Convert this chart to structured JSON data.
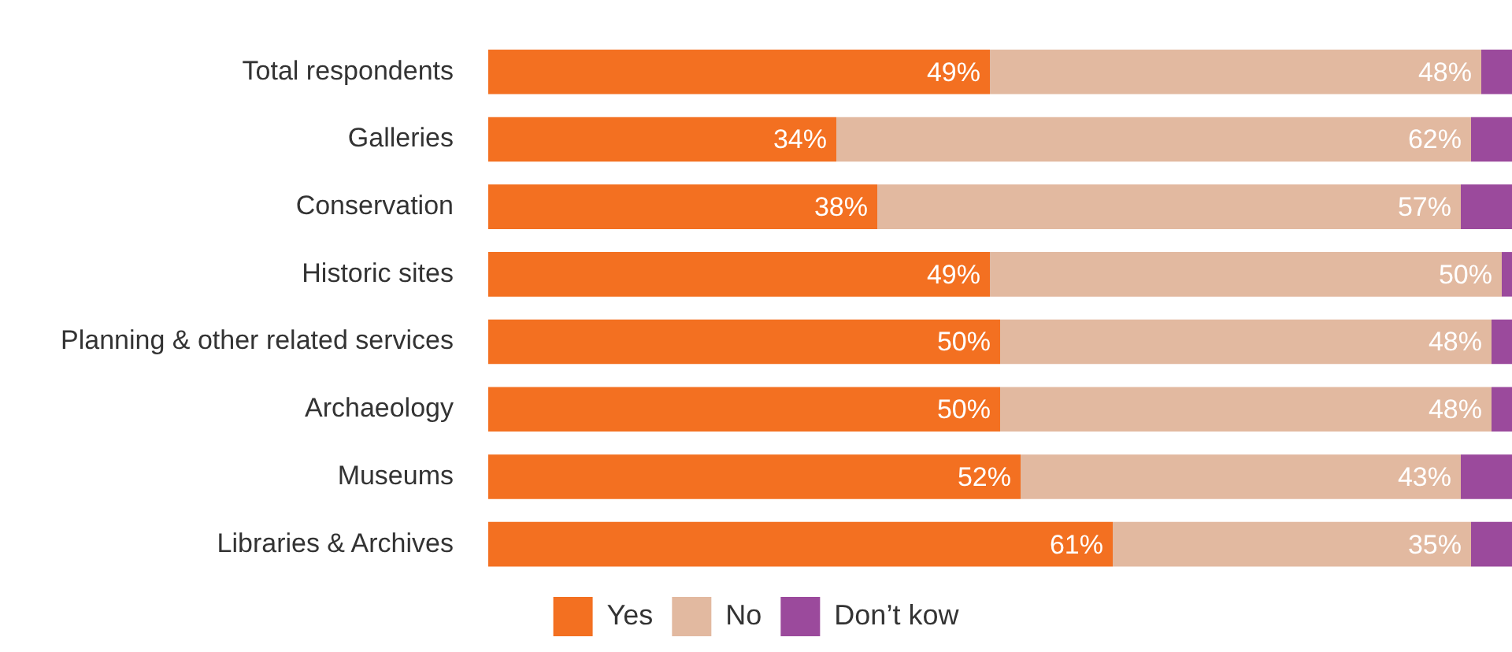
{
  "chart_data": {
    "type": "bar",
    "orientation": "horizontal",
    "stacked": true,
    "categories": [
      "Total respondents",
      "Galleries",
      "Conservation",
      "Historic sites",
      "Planning & other related services",
      "Archaeology",
      "Museums",
      "Libraries & Archives"
    ],
    "series": [
      {
        "name": "Yes",
        "color": "#f37021",
        "values": [
          49,
          34,
          38,
          49,
          50,
          50,
          52,
          61
        ],
        "value_labels": [
          "49%",
          "34%",
          "38%",
          "49%",
          "50%",
          "50%",
          "52%",
          "61%"
        ]
      },
      {
        "name": "No",
        "color": "#e2b9a0",
        "values": [
          48,
          62,
          57,
          50,
          48,
          48,
          43,
          35
        ],
        "value_labels": [
          "48%",
          "62%",
          "57%",
          "50%",
          "48%",
          "48%",
          "43%",
          "35%"
        ]
      },
      {
        "name": "Don’t kow",
        "color": "#9b4a9c",
        "values": [
          3,
          4,
          5,
          1,
          2,
          2,
          5,
          4
        ]
      }
    ],
    "xlim": [
      0,
      100
    ],
    "tick_labels": "y",
    "legend": "bottom"
  }
}
